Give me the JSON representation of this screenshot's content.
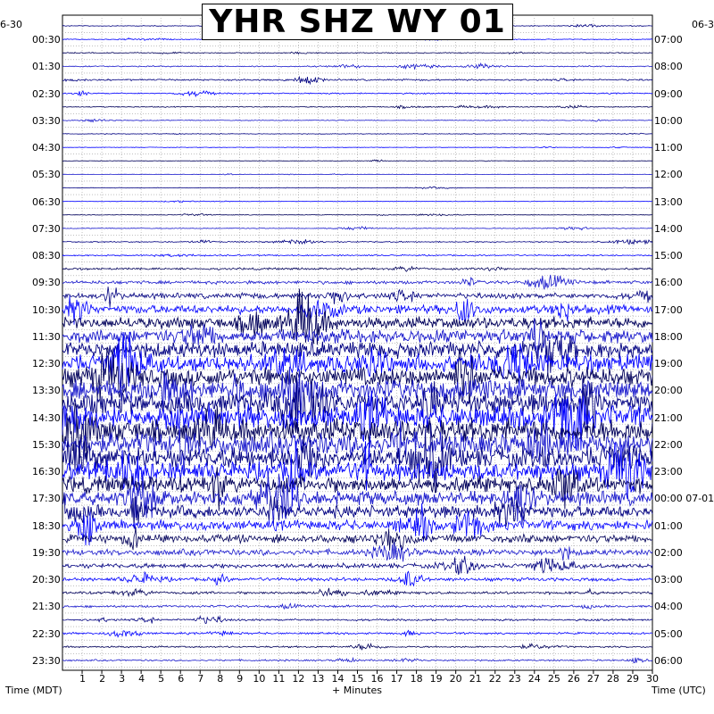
{
  "chart_data": {
    "type": "line",
    "title": "YHR SHZ WY 01",
    "left_corner_label": "6-30",
    "right_corner_label": "06-3",
    "left_axis_title": "Time (MDT)",
    "right_axis_title": "Time (UTC)",
    "x_axis_title": "+ Minutes",
    "x_ticks": [
      "1",
      "2",
      "3",
      "4",
      "5",
      "6",
      "7",
      "8",
      "9",
      "10",
      "11",
      "12",
      "13",
      "14",
      "15",
      "16",
      "17",
      "18",
      "19",
      "20",
      "21",
      "22",
      "23",
      "24",
      "25",
      "26",
      "27",
      "28",
      "29",
      "30"
    ],
    "xlim": [
      0,
      30
    ],
    "left_times": [
      "00:30",
      "01:30",
      "02:30",
      "03:30",
      "04:30",
      "05:30",
      "06:30",
      "07:30",
      "08:30",
      "09:30",
      "10:30",
      "11:30",
      "12:30",
      "13:30",
      "14:30",
      "15:30",
      "16:30",
      "17:30",
      "18:30",
      "19:30",
      "20:30",
      "21:30",
      "22:30",
      "23:30"
    ],
    "right_times": [
      "07:00",
      "08:00",
      "09:00",
      "10:00",
      "11:00",
      "12:00",
      "13:00",
      "14:00",
      "15:00",
      "16:00",
      "17:00",
      "18:00",
      "19:00",
      "20:00",
      "21:00",
      "22:00",
      "23:00",
      "00:00 07-01",
      "01:00",
      "02:00",
      "03:00",
      "04:00",
      "05:00",
      "06:00"
    ],
    "trace_colors": [
      "#000080",
      "#0000ff",
      "#00005a",
      "#1a1acc"
    ],
    "trace_count": 48,
    "activity_levels": [
      0.12,
      0.12,
      0.15,
      0.18,
      0.25,
      0.2,
      0.15,
      0.12,
      0.1,
      0.08,
      0.07,
      0.07,
      0.09,
      0.08,
      0.1,
      0.12,
      0.18,
      0.2,
      0.3,
      0.5,
      0.85,
      1.3,
      1.7,
      2.0,
      2.4,
      2.6,
      2.8,
      3.0,
      3.2,
      3.4,
      3.5,
      3.3,
      3.0,
      2.7,
      2.4,
      2.1,
      1.8,
      1.5,
      1.2,
      0.9,
      0.7,
      0.5,
      0.4,
      0.35,
      0.3,
      0.3,
      0.25,
      0.25
    ],
    "grid": true
  }
}
